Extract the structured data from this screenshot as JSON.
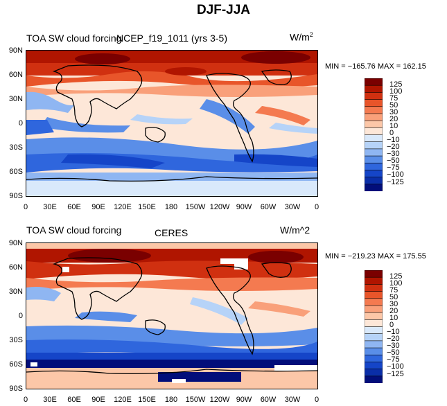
{
  "figure": {
    "title": "DJF-JJA"
  },
  "colorbar": {
    "levels": [
      "125",
      "100",
      "75",
      "50",
      "30",
      "20",
      "10",
      "0",
      "−10",
      "−20",
      "−30",
      "−50",
      "−75",
      "−100",
      "−125"
    ],
    "colors": [
      "#7a0000",
      "#b01500",
      "#d03010",
      "#e8552a",
      "#f47a50",
      "#f9a07a",
      "#fcc7a8",
      "#fde7d8",
      "#d9e9fb",
      "#b6d3f8",
      "#8fb6f2",
      "#5a8ee8",
      "#2f66dd",
      "#1545c8",
      "#0a2ea8",
      "#020e7a"
    ]
  },
  "panels": [
    {
      "title_left": "TOA SW cloud forcing",
      "title_center": "NCEP_f19_1011 (yrs 3-5)",
      "units": "W/m",
      "units_sup": "2",
      "stats": "MIN = −165.76 MAX = 162.15"
    },
    {
      "title_left": "TOA SW cloud forcing",
      "title_center": "CERES",
      "units": "W/m^2",
      "units_sup": "",
      "stats": "MIN = −219.23 MAX = 175.55"
    }
  ],
  "axes": {
    "lat_labels": [
      "90N",
      "60N",
      "30N",
      "0",
      "30S",
      "60S",
      "90S"
    ],
    "lon_labels": [
      "0",
      "30E",
      "60E",
      "90E",
      "120E",
      "150E",
      "180",
      "150W",
      "120W",
      "90W",
      "60W",
      "30W",
      "0"
    ]
  }
}
